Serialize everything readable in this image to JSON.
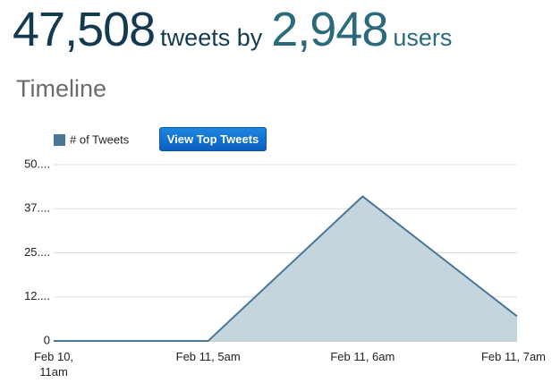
{
  "header": {
    "tweets": "47,508",
    "tweets_label": "tweets by",
    "users": "2,948",
    "users_label": "users"
  },
  "section_title": "Timeline",
  "button": "View Top Tweets",
  "chart_data": {
    "type": "area",
    "categories": [
      "Feb 10, 11am",
      "Feb 11, 5am",
      "Feb 11, 6am",
      "Feb 11, 7am"
    ],
    "series": [
      {
        "name": "# of Tweets",
        "color": "#4a7796",
        "fill": "#c5d5de",
        "values": [
          0,
          0,
          41,
          7
        ]
      }
    ],
    "ylim": [
      0,
      50
    ],
    "yticks": [
      0,
      {
        "value": 12.5,
        "label": "12...."
      },
      {
        "value": 25,
        "label": "25...."
      },
      {
        "value": 37.5,
        "label": "37...."
      },
      {
        "value": 50,
        "label": "50...."
      }
    ],
    "grid": true
  }
}
